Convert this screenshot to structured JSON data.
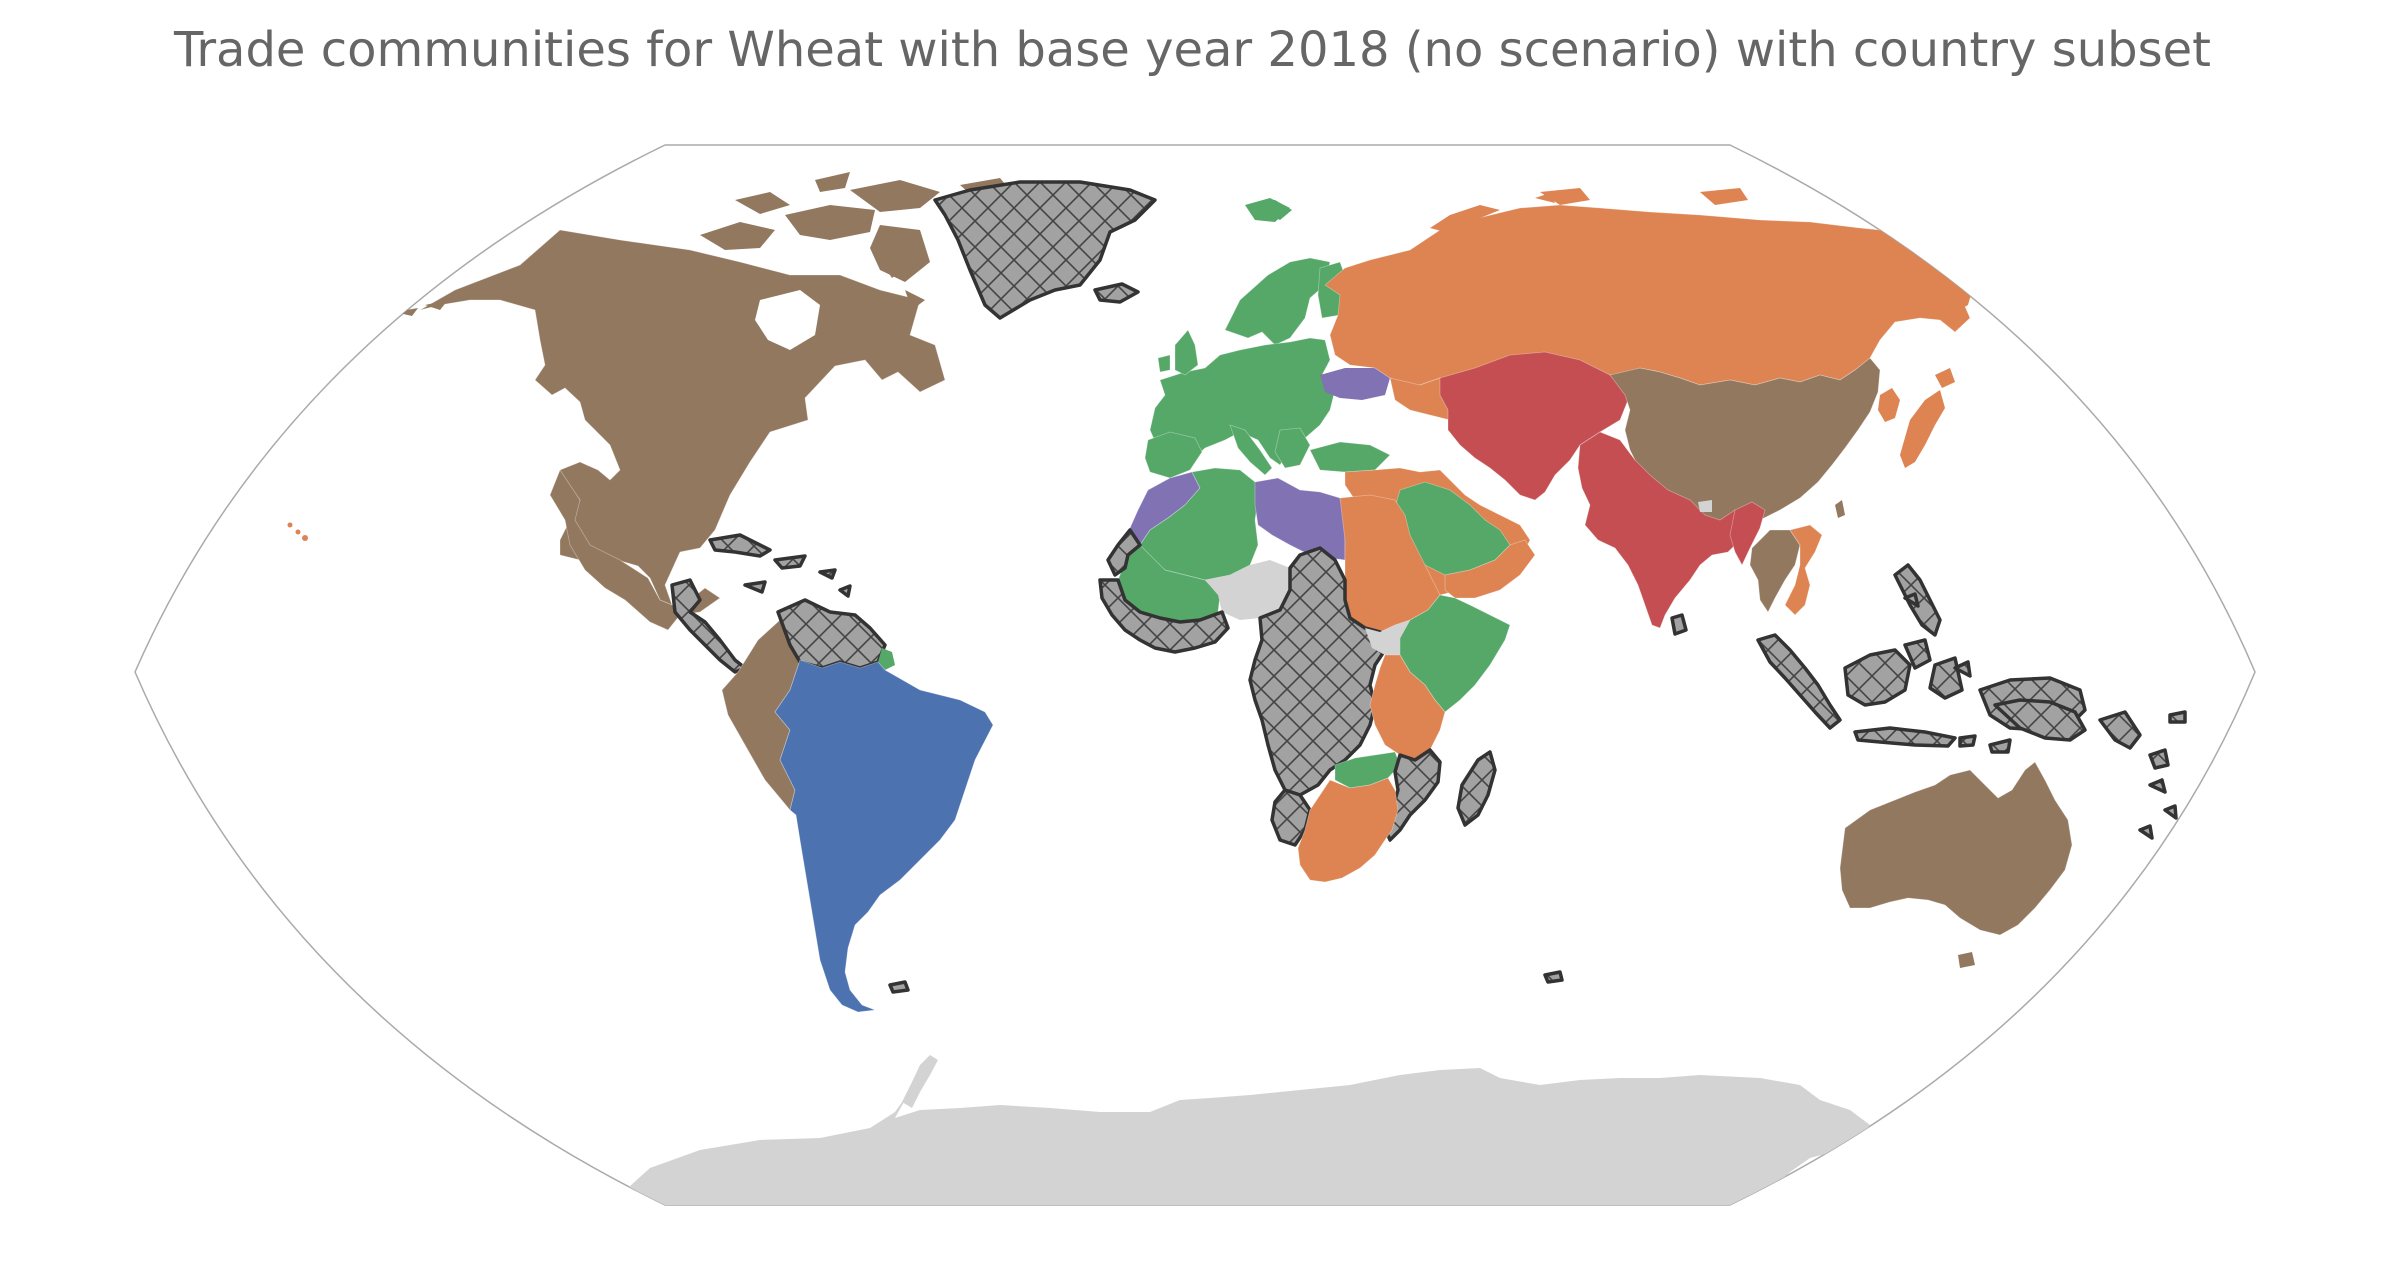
{
  "title": "Trade communities for Wheat with base year 2018 (no scenario) with country subset",
  "colors": {
    "community_orange": "#dd8452",
    "community_brown": "#937860",
    "community_green": "#55a868",
    "community_blue": "#4c72b0",
    "community_red": "#c44e52",
    "community_purple": "#8172b3",
    "no_data": "#d3d3d3",
    "excluded_hatched": "#999999",
    "hatch_stroke": "#333333",
    "frame": "#aaaaaa"
  },
  "legend": []
}
